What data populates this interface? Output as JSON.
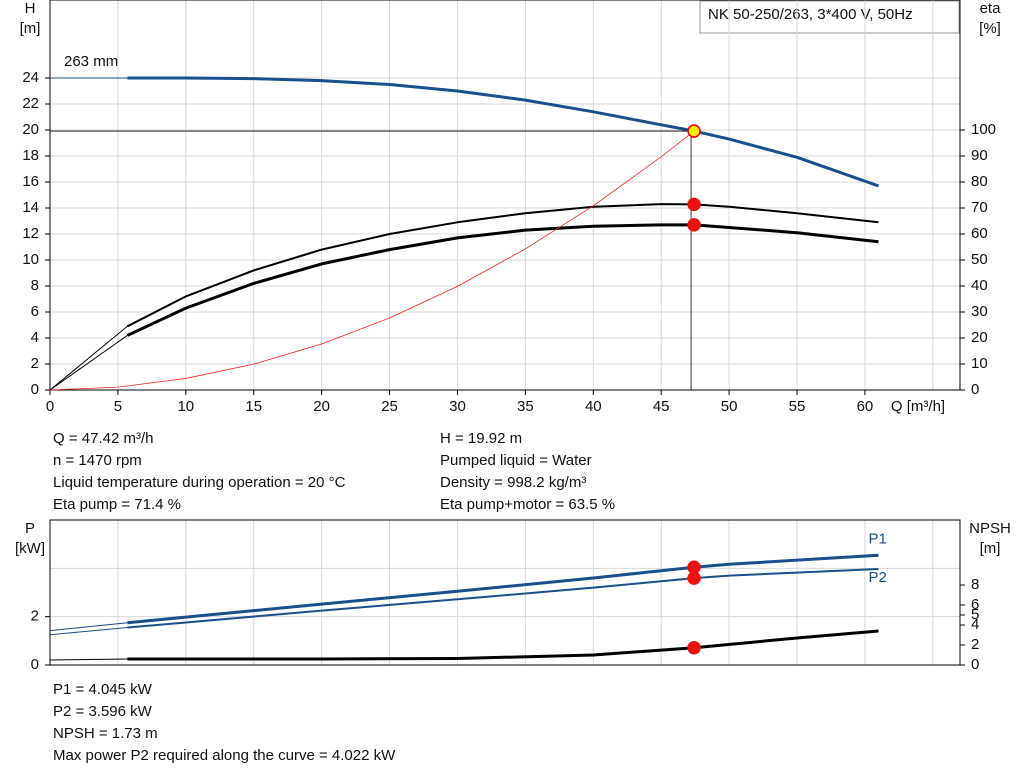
{
  "title": "NK 50-250/263, 3*400 V, 50Hz",
  "chart_data": [
    {
      "type": "line",
      "xlim": [
        0,
        67
      ],
      "xticks": [
        0,
        5,
        10,
        15,
        20,
        25,
        30,
        35,
        40,
        45,
        50,
        55,
        60
      ],
      "xgrid": [
        0,
        5,
        10,
        15,
        20,
        25,
        30,
        35,
        40,
        45,
        50,
        55,
        60,
        65
      ],
      "xlabel": "Q [m³/h]",
      "ylabel": "H",
      "yunit": "[m]",
      "ylim": [
        0,
        30
      ],
      "yticks": [
        0,
        2,
        4,
        6,
        8,
        10,
        12,
        14,
        16,
        18,
        20,
        22,
        24
      ],
      "grid": true,
      "y2label": "eta",
      "y2unit": "[%]",
      "y2lim": [
        0,
        150
      ],
      "y2ticks": [
        0,
        10,
        20,
        30,
        40,
        50,
        60,
        70,
        80,
        90,
        100
      ],
      "curve_label": "263 mm",
      "series": [
        {
          "color": "#1a4f8a",
          "width": 1,
          "x": [
            0,
            5.7
          ],
          "values": [
            24,
            24
          ]
        },
        {
          "color": "#1a4f8a",
          "width": 3,
          "x": [
            5.7,
            10,
            15,
            20,
            25,
            30,
            35,
            40,
            45,
            47.42,
            50,
            55,
            61
          ],
          "values": [
            24,
            24,
            23.95,
            23.8,
            23.5,
            23,
            22.3,
            21.4,
            20.4,
            19.92,
            19.3,
            17.9,
            15.7
          ],
          "marker_index": 9,
          "marker_color": "#ffee00",
          "guides": true
        },
        {
          "color": "#000000",
          "width": 1,
          "axis": "y2",
          "x": [
            0,
            5.7
          ],
          "values": [
            0,
            24.5
          ]
        },
        {
          "color": "#000000",
          "width": 2,
          "axis": "y2",
          "x": [
            5.7,
            10,
            15,
            20,
            25,
            30,
            35,
            40,
            45,
            47.42,
            50,
            55,
            61
          ],
          "values": [
            24.5,
            36,
            46,
            54,
            60,
            64.5,
            68,
            70.5,
            71.5,
            71.4,
            70.5,
            68,
            64.5
          ],
          "marker_index": 9,
          "marker_color": "#ee1111"
        },
        {
          "color": "#000000",
          "width": 1,
          "axis": "y2",
          "x": [
            0,
            5.7
          ],
          "values": [
            0,
            21
          ]
        },
        {
          "color": "#000000",
          "width": 3,
          "axis": "y2",
          "x": [
            5.7,
            10,
            15,
            20,
            25,
            30,
            35,
            40,
            45,
            47.42,
            50,
            55,
            61
          ],
          "values": [
            21,
            31.5,
            41,
            48.5,
            54,
            58.5,
            61.5,
            63,
            63.5,
            63.5,
            62.5,
            60.5,
            57
          ],
          "marker_index": 9,
          "marker_color": "#ee1111"
        },
        {
          "color": "#ee2222",
          "width": 0.8,
          "x": [
            0,
            5,
            10,
            15,
            20,
            25,
            30,
            35,
            40,
            45,
            47.42
          ],
          "values": [
            0,
            0.22,
            0.89,
            1.99,
            3.54,
            5.54,
            7.97,
            10.85,
            14.17,
            17.94,
            19.92
          ]
        }
      ]
    },
    {
      "type": "line",
      "xlim": [
        0,
        67
      ],
      "xgrid": [
        0,
        5,
        10,
        15,
        20,
        25,
        30,
        35,
        40,
        45,
        50,
        55,
        60,
        65
      ],
      "ylabel": "P",
      "yunit": "[kW]",
      "ylim": [
        0,
        6
      ],
      "yticks": [
        0,
        2
      ],
      "ygrid": [
        2,
        4
      ],
      "y2label": "NPSH",
      "y2unit": "[m]",
      "y2lim": [
        0,
        14.5
      ],
      "y2ticks": [
        0,
        2,
        4,
        5,
        6,
        8
      ],
      "series": [
        {
          "color": "#1a4f8a",
          "width": 1,
          "x": [
            0,
            5.7
          ],
          "values": [
            1.42,
            1.75
          ]
        },
        {
          "name": "P1",
          "color": "#1a4f8a",
          "width": 3,
          "x": [
            5.7,
            10,
            20,
            30,
            40,
            47.42,
            50,
            61
          ],
          "values": [
            1.75,
            1.98,
            2.52,
            3.05,
            3.6,
            4.045,
            4.17,
            4.54
          ],
          "marker_index": 5,
          "marker_color": "#ee1111"
        },
        {
          "color": "#1a4f8a",
          "width": 1,
          "x": [
            0,
            5.7
          ],
          "values": [
            1.25,
            1.55
          ]
        },
        {
          "name": "P2",
          "color": "#1a4f8a",
          "width": 2,
          "x": [
            5.7,
            10,
            20,
            30,
            40,
            47.42,
            50,
            61
          ],
          "values": [
            1.55,
            1.76,
            2.25,
            2.72,
            3.2,
            3.596,
            3.7,
            3.97
          ],
          "marker_index": 5,
          "marker_color": "#ee1111"
        },
        {
          "color": "#000000",
          "width": 1,
          "axis": "y2",
          "x": [
            0,
            5.7
          ],
          "values": [
            0.5,
            0.6
          ]
        },
        {
          "color": "#000000",
          "width": 3,
          "axis": "y2",
          "x": [
            5.7,
            10,
            20,
            30,
            40,
            47.42,
            55,
            61
          ],
          "values": [
            0.6,
            0.6,
            0.6,
            0.65,
            1.0,
            1.73,
            2.7,
            3.4
          ],
          "marker_index": 5,
          "marker_color": "#ee1111"
        }
      ]
    }
  ],
  "info_top_left": [
    "Q = 47.42 m³/h",
    "n = 1470 rpm",
    "Liquid temperature during operation = 20 °C",
    "Eta pump = 71.4 %"
  ],
  "info_top_right": [
    "H = 19.92 m",
    "Pumped liquid = Water",
    "Density = 998.2 kg/m³",
    "Eta pump+motor = 63.5 %"
  ],
  "info_bottom": [
    "P1 = 4.045 kW",
    "P2 = 3.596 kW",
    "NPSH = 1.73 m",
    "Max power P2 required along the curve = 4.022 kW"
  ]
}
